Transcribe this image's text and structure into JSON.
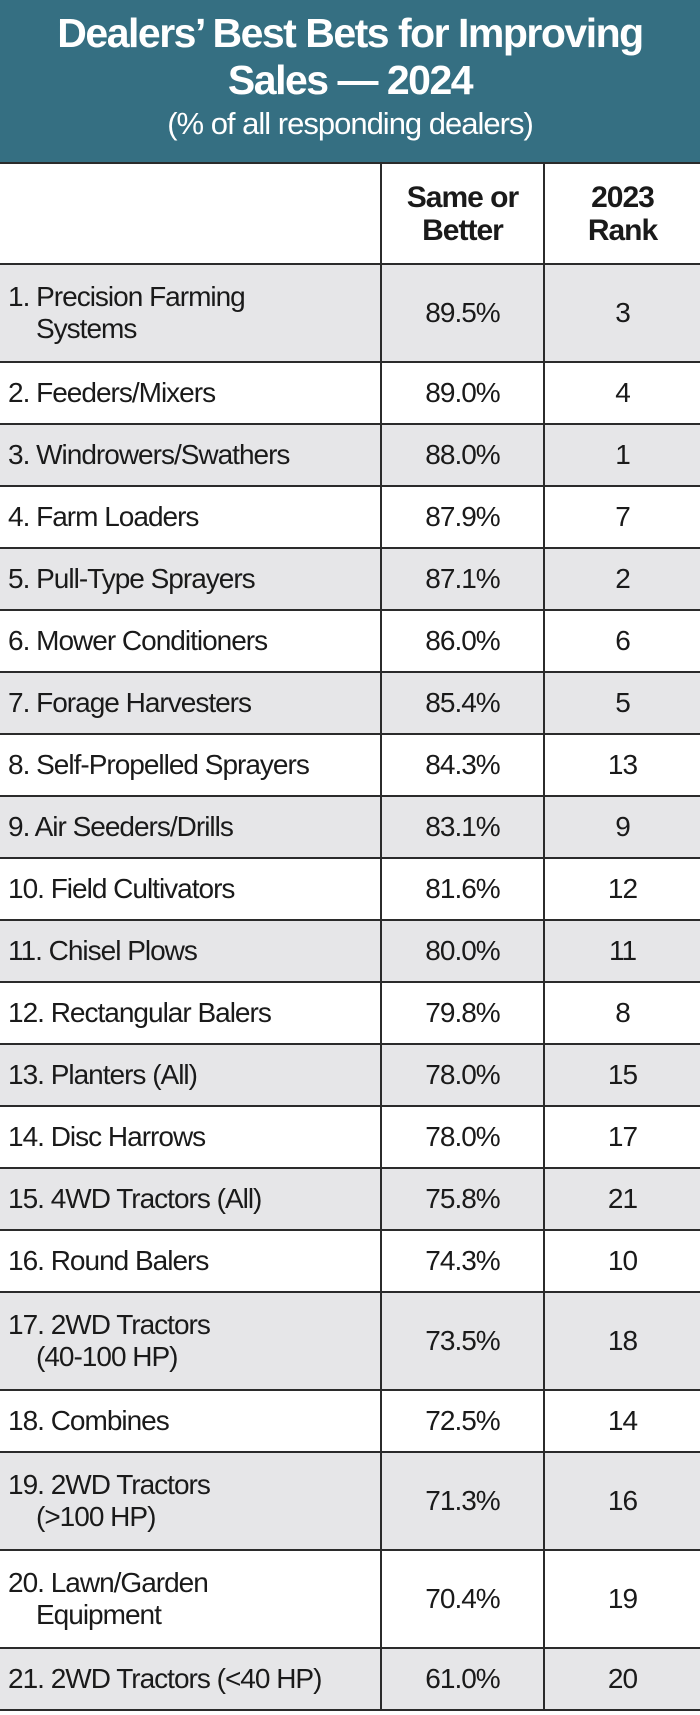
{
  "header": {
    "title_line1": "Dealers’ Best Bets for Improving",
    "title_line2": "Sales — 2024",
    "subtitle": "(% of all responding dealers)",
    "background_color": "#356f82"
  },
  "columns": {
    "item": "",
    "same_or_better_l1": "Same or",
    "same_or_better_l2": "Better",
    "rank_l1": "2023",
    "rank_l2": "Rank"
  },
  "rows": [
    {
      "l1": "1. Precision Farming",
      "l2": "Systems",
      "value": "89.5%",
      "rank": "3"
    },
    {
      "l1": "2. Feeders/Mixers",
      "value": "89.0%",
      "rank": "4"
    },
    {
      "l1": "3. Windrowers/Swathers",
      "value": "88.0%",
      "rank": "1"
    },
    {
      "l1": "4. Farm Loaders",
      "value": "87.9%",
      "rank": "7"
    },
    {
      "l1": "5. Pull-Type Sprayers",
      "value": "87.1%",
      "rank": "2"
    },
    {
      "l1": "6. Mower Conditioners",
      "value": "86.0%",
      "rank": "6"
    },
    {
      "l1": "7. Forage Harvesters",
      "value": "85.4%",
      "rank": "5"
    },
    {
      "l1": "8. Self-Propelled Sprayers",
      "value": "84.3%",
      "rank": "13"
    },
    {
      "l1": "9. Air Seeders/Drills",
      "value": "83.1%",
      "rank": "9"
    },
    {
      "l1": "10. Field Cultivators",
      "value": "81.6%",
      "rank": "12"
    },
    {
      "l1": "11. Chisel Plows",
      "value": "80.0%",
      "rank": "11"
    },
    {
      "l1": "12. Rectangular Balers",
      "value": "79.8%",
      "rank": "8"
    },
    {
      "l1": "13. Planters (All)",
      "value": "78.0%",
      "rank": "15"
    },
    {
      "l1": "14. Disc Harrows",
      "value": "78.0%",
      "rank": "17"
    },
    {
      "l1": "15. 4WD Tractors (All)",
      "value": "75.8%",
      "rank": "21"
    },
    {
      "l1": "16. Round Balers",
      "value": "74.3%",
      "rank": "10"
    },
    {
      "l1": "17. 2WD Tractors",
      "l2": "(40-100 HP)",
      "value": "73.5%",
      "rank": "18"
    },
    {
      "l1": "18. Combines",
      "value": "72.5%",
      "rank": "14"
    },
    {
      "l1": "19. 2WD Tractors",
      "l2": "(>100 HP)",
      "value": "71.3%",
      "rank": "16"
    },
    {
      "l1": "20. Lawn/Garden",
      "l2": "Equipment",
      "value": "70.4%",
      "rank": "19"
    },
    {
      "l1": "21. 2WD Tractors (<40 HP)",
      "value": "61.0%",
      "rank": "20"
    }
  ]
}
